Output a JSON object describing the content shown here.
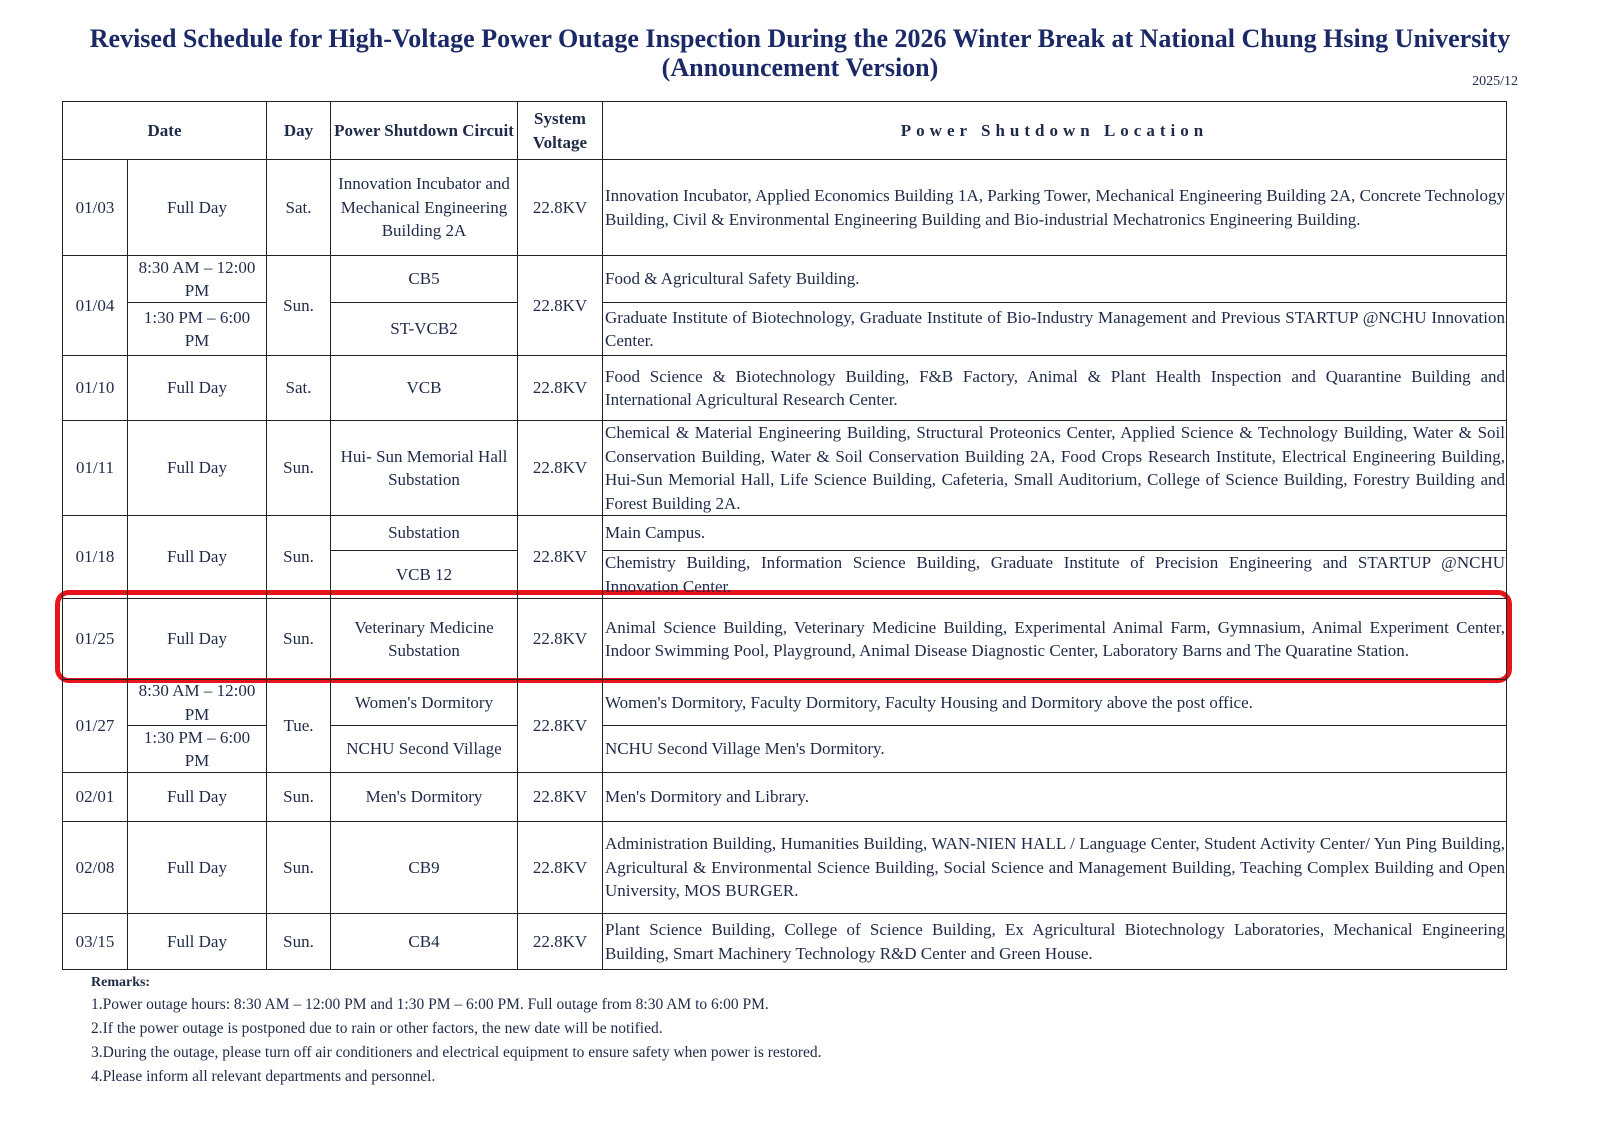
{
  "header": {
    "title": [
      "Revised Schedule for High-Voltage Power Outage Inspection During the 2026 Winter Break at National Chung Hsing University",
      "(Announcement Version)"
    ],
    "date": "2025/12"
  },
  "table": {
    "columns": [
      "Date",
      "Day",
      "Power Shutdown Circuit",
      "System Voltage",
      "Power Shutdown Location"
    ],
    "rows": [
      {
        "date": "01/03",
        "time": "Full Day",
        "day": "Sat.",
        "voltage": "22.8KV",
        "parts": [
          {
            "circuit": "Innovation Incubator and Mechanical Engineering Building 2A",
            "location": "Innovation Incubator, Applied Economics Building 1A, Parking Tower, Mechanical Engineering Building 2A, Concrete Technology Building, Civil & Environmental Engineering Building and Bio-industrial Mechatronics Engineering Building."
          }
        ]
      },
      {
        "date": "01/04",
        "day": "Sun.",
        "voltage": "22.8KV",
        "parts": [
          {
            "time": "8:30 AM – 12:00 PM",
            "circuit": "CB5",
            "location": "Food & Agricultural Safety Building."
          },
          {
            "time": "1:30 PM – 6:00 PM",
            "circuit": "ST-VCB2",
            "location": "Graduate Institute of Biotechnology, Graduate Institute of Bio-Industry Management and Previous STARTUP @NCHU Innovation Center."
          }
        ]
      },
      {
        "date": "01/10",
        "time": "Full Day",
        "day": "Sat.",
        "voltage": "22.8KV",
        "parts": [
          {
            "circuit": "VCB",
            "location": "Food Science & Biotechnology Building, F&B Factory, Animal & Plant Health Inspection and Quarantine Building and International Agricultural Research Center."
          }
        ]
      },
      {
        "date": "01/11",
        "time": "Full Day",
        "day": "Sun.",
        "voltage": "22.8KV",
        "parts": [
          {
            "circuit": "Hui- Sun Memorial Hall Substation",
            "location": "Chemical & Material Engineering Building, Structural Proteonics Center, Applied Science & Technology Building, Water & Soil Conservation Building, Water & Soil Conservation Building 2A, Food Crops Research Institute, Electrical Engineering Building, Hui-Sun Memorial Hall, Life Science Building, Cafeteria, Small Auditorium, College of Science Building, Forestry Building and Forest Building 2A."
          }
        ]
      },
      {
        "date": "01/18",
        "time": "Full Day",
        "day": "Sun.",
        "voltage": "22.8KV",
        "parts": [
          {
            "circuit": "Substation",
            "location": "Main Campus."
          },
          {
            "circuit": "VCB 12",
            "location": "Chemistry Building, Information Science Building, Graduate Institute of Precision Engineering and STARTUP @NCHU Innovation Center."
          }
        ]
      },
      {
        "date": "01/25",
        "time": "Full Day",
        "day": "Sun.",
        "voltage": "22.8KV",
        "parts": [
          {
            "circuit": "Veterinary Medicine Substation",
            "location": "Animal Science Building, Veterinary Medicine Building, Experimental Animal Farm, Gymnasium, Animal Experiment Center, Indoor Swimming Pool, Playground, Animal Disease Diagnostic Center, Laboratory Barns and The Quaratine Station."
          }
        ]
      },
      {
        "date": "01/27",
        "day": "Tue.",
        "voltage": "22.8KV",
        "parts": [
          {
            "time": "8:30 AM – 12:00 PM",
            "circuit": "Women's Dormitory",
            "location": "Women's Dormitory, Faculty Dormitory, Faculty Housing and Dormitory above the post office."
          },
          {
            "time": "1:30 PM – 6:00 PM",
            "circuit": "NCHU Second Village",
            "location": "NCHU Second Village Men's Dormitory."
          }
        ]
      },
      {
        "date": "02/01",
        "time": "Full Day",
        "day": "Sun.",
        "voltage": "22.8KV",
        "parts": [
          {
            "circuit": "Men's Dormitory",
            "location": "Men's Dormitory and Library."
          }
        ]
      },
      {
        "date": "02/08",
        "time": "Full Day",
        "day": "Sun.",
        "voltage": "22.8KV",
        "parts": [
          {
            "circuit": "CB9",
            "location": "Administration Building, Humanities Building, WAN-NIEN HALL / Language Center, Student Activity Center/ Yun Ping Building, Agricultural & Environmental Science Building, Social Science and Management Building, Teaching Complex Building and Open University, MOS BURGER."
          }
        ]
      },
      {
        "date": "03/15",
        "time": "Full Day",
        "day": "Sun.",
        "voltage": "22.8KV",
        "parts": [
          {
            "circuit": "CB4",
            "location": "Plant Science Building, College of Science Building, Ex Agricultural Biotechnology Laboratories, Mechanical Engineering Building, Smart Machinery Technology R&D Center and Green House."
          }
        ]
      }
    ]
  },
  "remarks": {
    "title": "Remarks:",
    "items": [
      "1.Power outage hours: 8:30 AM – 12:00 PM and 1:30 PM – 6:00 PM. Full outage from 8:30 AM to 6:00 PM.",
      "2.If the power outage is postponed due to rain or other factors, the new date will be notified.",
      "3.During the outage, please turn off air conditioners and electrical equipment to ensure safety when power is restored.",
      "4.Please inform all relevant departments and personnel."
    ]
  }
}
